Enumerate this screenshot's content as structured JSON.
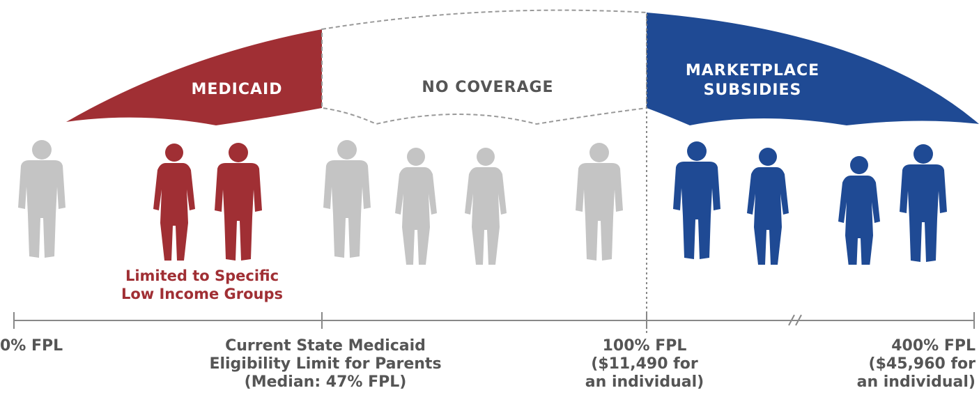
{
  "segments": {
    "medicaid": "MEDICAID",
    "no_coverage": "NO COVERAGE",
    "marketplace_line1": "MARKETPLACE",
    "marketplace_line2": "SUBSIDIES"
  },
  "limited_note": {
    "line1": "Limited to Specific",
    "line2": "Low Income Groups"
  },
  "axis_labels": {
    "fpl0": "0% FPL",
    "state_line1": "Current State Medicaid",
    "state_line2": "Eligibility Limit for Parents",
    "state_line3": "(Median: 47% FPL)",
    "fpl100_line1": "100% FPL",
    "fpl100_line2": "($11,490 for",
    "fpl100_line3": "an individual)",
    "fpl400_line1": "400% FPL",
    "fpl400_line2": "($45,960 for",
    "fpl400_line3": "an individual)"
  },
  "colors": {
    "medicaid": "#a02f34",
    "marketplace": "#1f4a94",
    "no_coverage_people": "#c4c4c4"
  }
}
